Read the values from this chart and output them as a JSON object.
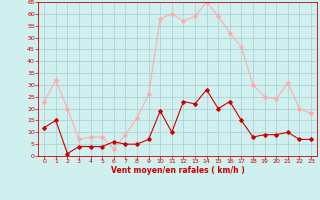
{
  "x": [
    0,
    1,
    2,
    3,
    4,
    5,
    6,
    7,
    8,
    9,
    10,
    11,
    12,
    13,
    14,
    15,
    16,
    17,
    18,
    19,
    20,
    21,
    22,
    23
  ],
  "y_mean": [
    12,
    15,
    1,
    4,
    4,
    4,
    6,
    5,
    5,
    7,
    19,
    10,
    23,
    22,
    28,
    20,
    23,
    15,
    8,
    9,
    9,
    10,
    7,
    7
  ],
  "y_gust": [
    23,
    32,
    20,
    7,
    8,
    8,
    3,
    9,
    16,
    26,
    58,
    60,
    57,
    59,
    65,
    59,
    52,
    46,
    30,
    25,
    24,
    31,
    20,
    18
  ],
  "mean_color": "#cc0000",
  "gust_color": "#ffaaaa",
  "bg_color": "#d0f0f0",
  "grid_color": "#aacccc",
  "xlabel": "Vent moyen/en rafales ( km/h )",
  "ylim": [
    0,
    65
  ],
  "xlim": [
    -0.5,
    23.5
  ],
  "yticks": [
    0,
    5,
    10,
    15,
    20,
    25,
    30,
    35,
    40,
    45,
    50,
    55,
    60,
    65
  ],
  "xticks": [
    0,
    1,
    2,
    3,
    4,
    5,
    6,
    7,
    8,
    9,
    10,
    11,
    12,
    13,
    14,
    15,
    16,
    17,
    18,
    19,
    20,
    21,
    22,
    23
  ],
  "tick_color": "#cc0000",
  "label_color": "#cc0000",
  "axis_color": "#cc0000"
}
